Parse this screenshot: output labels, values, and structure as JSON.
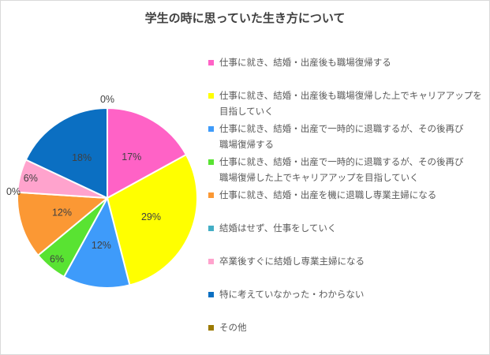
{
  "chart_data": {
    "type": "pie",
    "title": "学生の時に思っていた生き方について",
    "unit": "%",
    "legend_position": "right",
    "start_angle_deg": 0,
    "direction": "clockwise",
    "categories": [
      "仕事に就き、結婚・出産後も職場復帰する",
      "仕事に就き、結婚・出産後も職場復帰した上でキャリアアップを目指していく",
      "仕事に就き、結婚・出産で一時的に退職するが、その後再び職場復帰する",
      "仕事に就き、結婚・出産で一時的に退職するが、その後再び職場復帰した上でキャリアアップを目指していく",
      "仕事に就き、結婚・出産を機に退職し専業主婦になる",
      "結婚はせず、仕事をしていく",
      "卒業後すぐに結婚し専業主婦になる",
      "特に考えていなかった・わからない",
      "その他"
    ],
    "values": [
      17,
      29,
      12,
      6,
      12,
      0,
      6,
      18,
      0
    ],
    "value_labels": [
      "17%",
      "29%",
      "12%",
      "6%",
      "12%",
      "0%",
      "6%",
      "18%",
      "0%"
    ],
    "colors": [
      "#FF62C6",
      "#FFFF00",
      "#3E9BFA",
      "#59E332",
      "#FB9834",
      "#43AEC5",
      "#FFA3CD",
      "#0B6FC2",
      "#9C7A00"
    ],
    "label_text_color": "#404040",
    "title_color": "#404040",
    "legend_text_color": "#595959"
  },
  "legend": {
    "items": [
      {
        "color": "#FF62C6",
        "label_lines": [
          "仕事に就き、結婚・出産後も職場復帰する"
        ]
      },
      {
        "color": "#FFFF00",
        "label_lines": [
          "仕事に就き、結婚・出産後も職場復帰した上でキャリアアップを",
          "目指していく"
        ]
      },
      {
        "color": "#3E9BFA",
        "label_lines": [
          "仕事に就き、結婚・出産で一時的に退職するが、その後再び",
          "職場復帰する"
        ]
      },
      {
        "color": "#59E332",
        "label_lines": [
          "仕事に就き、結婚・出産で一時的に退職するが、その後再び",
          "職場復帰した上でキャリアアップを目指していく"
        ]
      },
      {
        "color": "#FB9834",
        "label_lines": [
          "仕事に就き、結婚・出産を機に退職し専業主婦になる"
        ]
      },
      {
        "color": "#43AEC5",
        "label_lines": [
          "結婚はせず、仕事をしていく"
        ]
      },
      {
        "color": "#FFA3CD",
        "label_lines": [
          "卒業後すぐに結婚し専業主婦になる"
        ]
      },
      {
        "color": "#0B6FC2",
        "label_lines": [
          "特に考えていなかった・わからない"
        ]
      },
      {
        "color": "#9C7A00",
        "label_lines": [
          "その他"
        ]
      }
    ]
  }
}
